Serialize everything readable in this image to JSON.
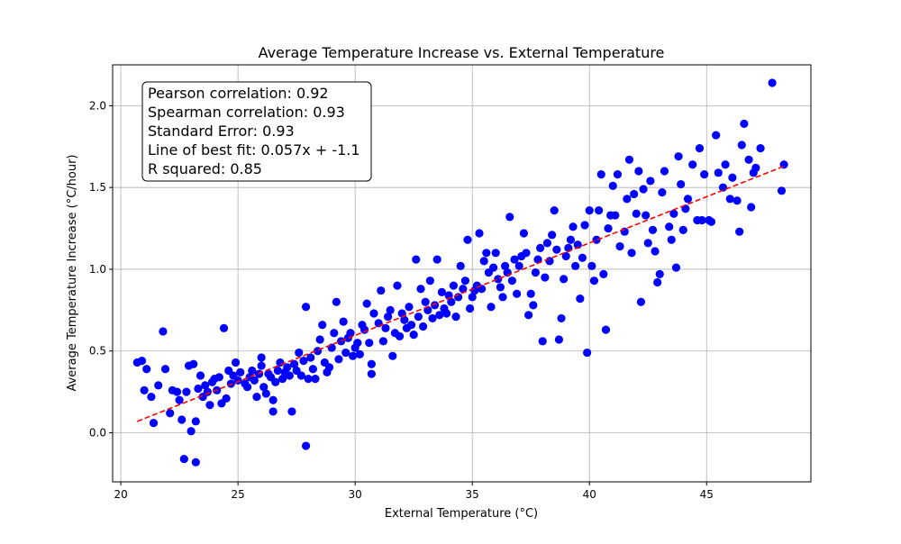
{
  "chart_data": {
    "type": "scatter",
    "title": "Average Temperature Increase vs. External Temperature",
    "xlabel": "External Temperature (°C)",
    "ylabel": "Average Temperature Increase (°C/hour)",
    "xlim": [
      19.65,
      49.45
    ],
    "ylim": [
      -0.3,
      2.25
    ],
    "xticks": [
      20,
      25,
      30,
      35,
      40,
      45
    ],
    "yticks": [
      0.0,
      0.5,
      1.0,
      1.5,
      2.0
    ],
    "xtick_labels": [
      "20",
      "25",
      "30",
      "35",
      "40",
      "45"
    ],
    "ytick_labels": [
      "0.0",
      "0.5",
      "1.0",
      "1.5",
      "2.0"
    ],
    "grid": true,
    "point_color": "#0000ff",
    "fit_color": "#ff0000",
    "fit_line": {
      "slope": 0.057,
      "intercept": -1.1,
      "x_range": [
        20.7,
        48.3
      ],
      "y_range": [
        0.07,
        1.63
      ]
    },
    "stats_box": {
      "lines": [
        "Pearson correlation: 0.92",
        "Spearman correlation: 0.93",
        "Standard Error: 0.93",
        "Line of best fit: 0.057x + -1.1",
        "R squared: 0.85"
      ],
      "placement": "top-left"
    },
    "points": [
      [
        20.7,
        0.43
      ],
      [
        20.9,
        0.44
      ],
      [
        21.0,
        0.26
      ],
      [
        21.1,
        0.39
      ],
      [
        21.3,
        0.22
      ],
      [
        21.4,
        0.06
      ],
      [
        21.6,
        0.29
      ],
      [
        21.8,
        0.62
      ],
      [
        21.9,
        0.39
      ],
      [
        22.1,
        0.12
      ],
      [
        22.2,
        0.26
      ],
      [
        22.4,
        0.25
      ],
      [
        22.5,
        0.2
      ],
      [
        22.6,
        0.08
      ],
      [
        22.7,
        -0.16
      ],
      [
        22.8,
        0.25
      ],
      [
        22.9,
        0.41
      ],
      [
        23.0,
        0.01
      ],
      [
        23.1,
        0.42
      ],
      [
        23.2,
        -0.18
      ],
      [
        23.2,
        0.07
      ],
      [
        23.3,
        0.27
      ],
      [
        23.4,
        0.35
      ],
      [
        23.5,
        0.22
      ],
      [
        23.6,
        0.29
      ],
      [
        23.7,
        0.25
      ],
      [
        23.8,
        0.17
      ],
      [
        23.9,
        0.31
      ],
      [
        24.0,
        0.33
      ],
      [
        24.1,
        0.26
      ],
      [
        24.2,
        0.34
      ],
      [
        24.3,
        0.18
      ],
      [
        24.4,
        0.64
      ],
      [
        24.5,
        0.21
      ],
      [
        24.6,
        0.38
      ],
      [
        24.7,
        0.3
      ],
      [
        24.8,
        0.35
      ],
      [
        24.9,
        0.43
      ],
      [
        25.0,
        0.32
      ],
      [
        25.1,
        0.37
      ],
      [
        25.3,
        0.3
      ],
      [
        25.4,
        0.28
      ],
      [
        25.5,
        0.34
      ],
      [
        25.6,
        0.38
      ],
      [
        25.7,
        0.32
      ],
      [
        25.8,
        0.22
      ],
      [
        25.9,
        0.36
      ],
      [
        26.0,
        0.41
      ],
      [
        26.0,
        0.46
      ],
      [
        26.1,
        0.28
      ],
      [
        26.2,
        0.24
      ],
      [
        26.3,
        0.36
      ],
      [
        26.4,
        0.34
      ],
      [
        26.5,
        0.13
      ],
      [
        26.5,
        0.2
      ],
      [
        26.6,
        0.31
      ],
      [
        26.7,
        0.38
      ],
      [
        26.8,
        0.43
      ],
      [
        26.9,
        0.33
      ],
      [
        27.0,
        0.37
      ],
      [
        27.1,
        0.4
      ],
      [
        27.2,
        0.35
      ],
      [
        27.3,
        0.13
      ],
      [
        27.4,
        0.42
      ],
      [
        27.5,
        0.38
      ],
      [
        27.6,
        0.49
      ],
      [
        27.7,
        0.35
      ],
      [
        27.8,
        0.44
      ],
      [
        27.9,
        0.77
      ],
      [
        27.9,
        -0.08
      ],
      [
        28.0,
        0.33
      ],
      [
        28.1,
        0.46
      ],
      [
        28.2,
        0.39
      ],
      [
        28.3,
        0.33
      ],
      [
        28.4,
        0.5
      ],
      [
        28.5,
        0.57
      ],
      [
        28.6,
        0.66
      ],
      [
        28.7,
        0.43
      ],
      [
        28.8,
        0.37
      ],
      [
        28.9,
        0.4
      ],
      [
        29.0,
        0.52
      ],
      [
        29.1,
        0.61
      ],
      [
        29.2,
        0.8
      ],
      [
        29.3,
        0.45
      ],
      [
        29.4,
        0.56
      ],
      [
        29.5,
        0.68
      ],
      [
        29.6,
        0.49
      ],
      [
        29.7,
        0.58
      ],
      [
        29.8,
        0.61
      ],
      [
        29.9,
        0.47
      ],
      [
        30.0,
        0.52
      ],
      [
        30.1,
        0.55
      ],
      [
        30.2,
        0.48
      ],
      [
        30.3,
        0.66
      ],
      [
        30.4,
        0.63
      ],
      [
        30.5,
        0.79
      ],
      [
        30.6,
        0.55
      ],
      [
        30.7,
        0.42
      ],
      [
        30.7,
        0.36
      ],
      [
        30.8,
        0.73
      ],
      [
        31.0,
        0.67
      ],
      [
        31.1,
        0.87
      ],
      [
        31.2,
        0.56
      ],
      [
        31.3,
        0.64
      ],
      [
        31.4,
        0.71
      ],
      [
        31.5,
        0.75
      ],
      [
        31.6,
        0.47
      ],
      [
        31.7,
        0.61
      ],
      [
        31.8,
        0.9
      ],
      [
        31.9,
        0.59
      ],
      [
        32.0,
        0.73
      ],
      [
        32.1,
        0.69
      ],
      [
        32.2,
        0.64
      ],
      [
        32.3,
        0.77
      ],
      [
        32.4,
        0.66
      ],
      [
        32.5,
        0.6
      ],
      [
        32.6,
        1.06
      ],
      [
        32.7,
        0.71
      ],
      [
        32.8,
        0.88
      ],
      [
        32.9,
        0.65
      ],
      [
        33.0,
        0.8
      ],
      [
        33.1,
        0.75
      ],
      [
        33.2,
        0.93
      ],
      [
        33.3,
        0.7
      ],
      [
        33.4,
        0.78
      ],
      [
        33.5,
        1.06
      ],
      [
        33.6,
        0.72
      ],
      [
        33.7,
        0.86
      ],
      [
        33.8,
        0.76
      ],
      [
        33.9,
        0.73
      ],
      [
        34.0,
        0.84
      ],
      [
        34.1,
        0.8
      ],
      [
        34.2,
        0.9
      ],
      [
        34.3,
        0.71
      ],
      [
        34.4,
        0.83
      ],
      [
        34.5,
        1.02
      ],
      [
        34.6,
        0.88
      ],
      [
        34.7,
        0.93
      ],
      [
        34.8,
        1.18
      ],
      [
        34.9,
        0.76
      ],
      [
        35.0,
        0.83
      ],
      [
        35.1,
        0.87
      ],
      [
        35.2,
        0.9
      ],
      [
        35.3,
        1.22
      ],
      [
        35.4,
        0.88
      ],
      [
        35.5,
        1.05
      ],
      [
        35.6,
        1.1
      ],
      [
        35.7,
        0.98
      ],
      [
        35.8,
        0.77
      ],
      [
        35.9,
        1.01
      ],
      [
        36.0,
        1.1
      ],
      [
        36.1,
        0.94
      ],
      [
        36.2,
        0.89
      ],
      [
        36.3,
        0.83
      ],
      [
        36.4,
        1.02
      ],
      [
        36.5,
        0.98
      ],
      [
        36.6,
        1.32
      ],
      [
        36.7,
        0.93
      ],
      [
        36.8,
        1.06
      ],
      [
        36.9,
        0.85
      ],
      [
        37.0,
        1.02
      ],
      [
        37.1,
        1.08
      ],
      [
        37.2,
        1.22
      ],
      [
        37.3,
        1.1
      ],
      [
        37.4,
        0.72
      ],
      [
        37.5,
        0.85
      ],
      [
        37.6,
        0.78
      ],
      [
        37.7,
        0.98
      ],
      [
        37.8,
        1.06
      ],
      [
        37.9,
        1.13
      ],
      [
        38.0,
        0.56
      ],
      [
        38.1,
        0.95
      ],
      [
        38.2,
        1.16
      ],
      [
        38.3,
        1.05
      ],
      [
        38.4,
        1.21
      ],
      [
        38.5,
        1.36
      ],
      [
        38.6,
        1.12
      ],
      [
        38.7,
        0.57
      ],
      [
        38.8,
        0.7
      ],
      [
        38.9,
        0.94
      ],
      [
        39.0,
        1.08
      ],
      [
        39.1,
        1.13
      ],
      [
        39.2,
        1.18
      ],
      [
        39.3,
        1.26
      ],
      [
        39.4,
        1.02
      ],
      [
        39.5,
        1.15
      ],
      [
        39.6,
        0.82
      ],
      [
        39.7,
        1.07
      ],
      [
        39.8,
        1.27
      ],
      [
        39.9,
        0.49
      ],
      [
        40.0,
        1.36
      ],
      [
        40.1,
        1.02
      ],
      [
        40.2,
        0.93
      ],
      [
        40.3,
        1.18
      ],
      [
        40.4,
        1.36
      ],
      [
        40.5,
        1.58
      ],
      [
        40.6,
        0.97
      ],
      [
        40.7,
        0.63
      ],
      [
        40.8,
        1.25
      ],
      [
        40.9,
        1.33
      ],
      [
        41.0,
        1.51
      ],
      [
        41.1,
        1.33
      ],
      [
        41.2,
        1.58
      ],
      [
        41.3,
        1.14
      ],
      [
        41.5,
        1.23
      ],
      [
        41.6,
        1.43
      ],
      [
        41.7,
        1.67
      ],
      [
        41.8,
        1.1
      ],
      [
        41.9,
        1.46
      ],
      [
        42.0,
        1.34
      ],
      [
        42.1,
        1.6
      ],
      [
        42.2,
        0.8
      ],
      [
        42.3,
        1.49
      ],
      [
        42.4,
        1.33
      ],
      [
        42.5,
        1.16
      ],
      [
        42.6,
        1.54
      ],
      [
        42.7,
        1.24
      ],
      [
        42.8,
        1.11
      ],
      [
        42.9,
        0.92
      ],
      [
        43.0,
        0.97
      ],
      [
        43.1,
        1.47
      ],
      [
        43.2,
        1.6
      ],
      [
        43.4,
        1.26
      ],
      [
        43.5,
        1.18
      ],
      [
        43.6,
        1.34
      ],
      [
        43.7,
        1.01
      ],
      [
        43.8,
        1.69
      ],
      [
        43.9,
        1.52
      ],
      [
        44.0,
        1.24
      ],
      [
        44.1,
        1.37
      ],
      [
        44.2,
        1.43
      ],
      [
        44.4,
        1.64
      ],
      [
        44.6,
        1.3
      ],
      [
        44.7,
        1.74
      ],
      [
        44.8,
        1.3
      ],
      [
        44.9,
        1.58
      ],
      [
        45.1,
        1.3
      ],
      [
        45.2,
        1.29
      ],
      [
        45.4,
        1.82
      ],
      [
        45.5,
        1.59
      ],
      [
        45.7,
        1.5
      ],
      [
        45.8,
        1.64
      ],
      [
        46.0,
        1.43
      ],
      [
        46.1,
        1.56
      ],
      [
        46.3,
        1.42
      ],
      [
        46.4,
        1.23
      ],
      [
        46.5,
        1.76
      ],
      [
        46.6,
        1.89
      ],
      [
        46.8,
        1.67
      ],
      [
        46.9,
        1.38
      ],
      [
        47.0,
        1.59
      ],
      [
        47.1,
        1.62
      ],
      [
        47.3,
        1.74
      ],
      [
        47.8,
        2.14
      ],
      [
        48.2,
        1.48
      ],
      [
        48.3,
        1.64
      ]
    ]
  }
}
